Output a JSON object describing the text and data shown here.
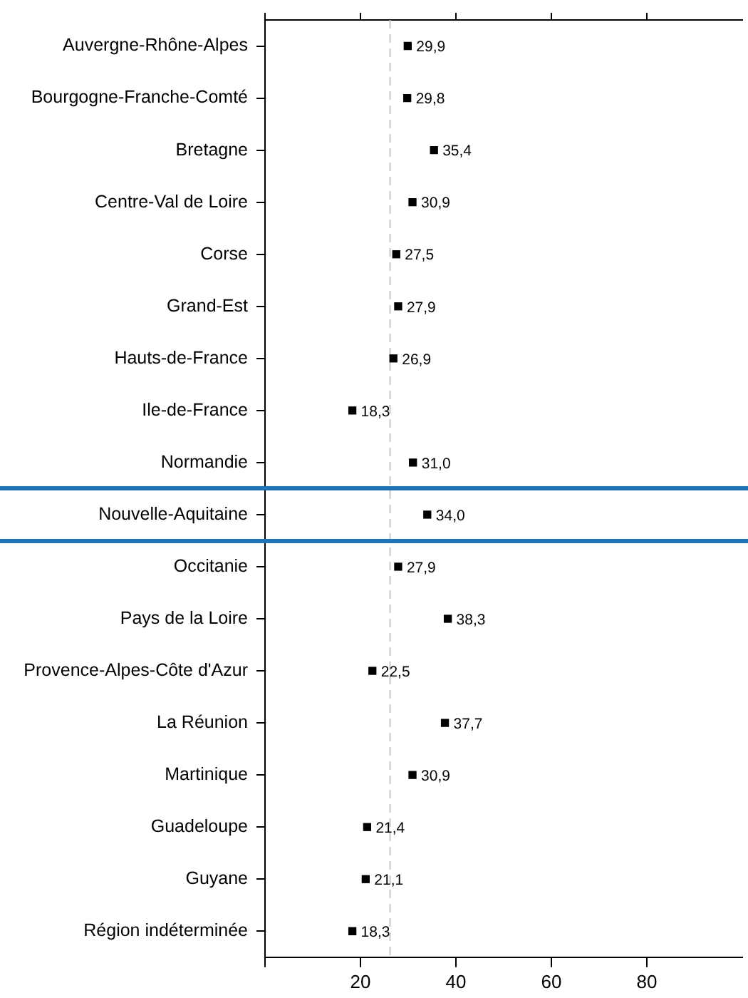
{
  "chart_data": {
    "type": "scatter",
    "orientation": "horizontal",
    "marker": "square",
    "color": "#000000",
    "grid": false,
    "legend": false,
    "categories": [
      "Auvergne-Rhône-Alpes",
      "Bourgogne-Franche-Comté",
      "Bretagne",
      "Centre-Val de Loire",
      "Corse",
      "Grand-Est",
      "Hauts-de-France",
      "Ile-de-France",
      "Normandie",
      "Nouvelle-Aquitaine",
      "Occitanie",
      "Pays de la Loire",
      "Provence-Alpes-Côte d'Azur",
      "La Réunion",
      "Martinique",
      "Guadeloupe",
      "Guyane",
      "Région indéterminée"
    ],
    "values": [
      29.9,
      29.8,
      35.4,
      30.9,
      27.5,
      27.9,
      26.9,
      18.3,
      31.0,
      34.0,
      27.9,
      38.3,
      22.5,
      37.7,
      30.9,
      21.4,
      21.1,
      18.3
    ],
    "value_labels": [
      "29,9",
      "29,8",
      "35,4",
      "30,9",
      "27,5",
      "27,9",
      "26,9",
      "18,3",
      "31,0",
      "34,0",
      "27,9",
      "38,3",
      "22,5",
      "37,7",
      "30,9",
      "21,4",
      "21,1",
      "18,3"
    ],
    "xlim": [
      0,
      100
    ],
    "xticks": [
      {
        "value": 0,
        "label": null
      },
      20,
      40,
      60,
      80
    ],
    "ref_lines": [
      {
        "axis": "x",
        "value": 26.2,
        "color": "#c8c8c8",
        "line_style": "dashed"
      }
    ]
  }
}
